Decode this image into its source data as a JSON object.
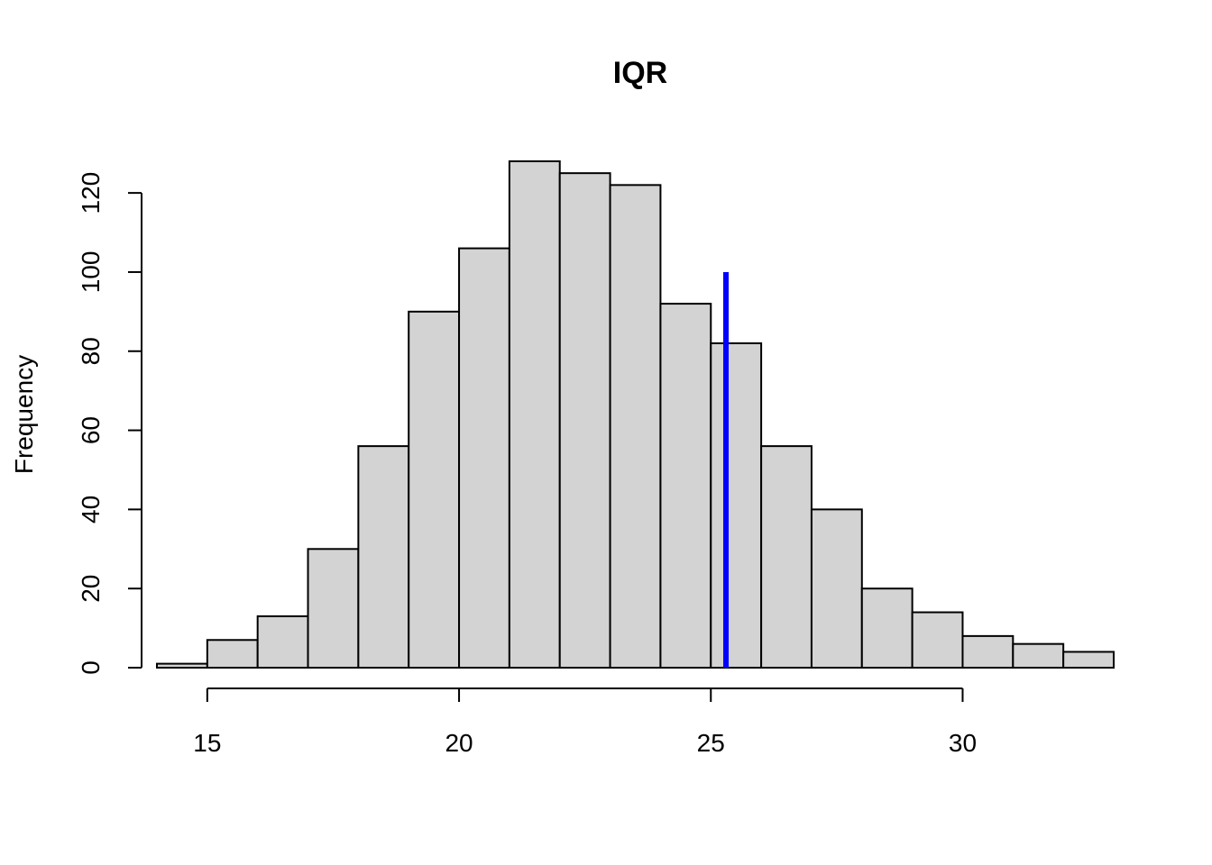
{
  "chart_data": {
    "type": "bar",
    "title": "IQR",
    "xlabel": "",
    "ylabel": "Frequency",
    "bin_edges": [
      14,
      15,
      16,
      17,
      18,
      19,
      20,
      21,
      22,
      23,
      24,
      25,
      26,
      27,
      28,
      29,
      30,
      31,
      32,
      33
    ],
    "values": [
      1,
      7,
      13,
      30,
      56,
      90,
      106,
      128,
      125,
      122,
      92,
      82,
      56,
      40,
      20,
      14,
      8,
      6,
      4
    ],
    "xlim": [
      14,
      33
    ],
    "ylim": [
      0,
      128
    ],
    "x_ticks": [
      15,
      20,
      25,
      30
    ],
    "y_ticks": [
      0,
      20,
      40,
      60,
      80,
      100,
      120
    ],
    "bar_fill": "#d3d3d3",
    "reference_line": {
      "x": 25.3,
      "y_from": 0,
      "y_to": 100,
      "color": "#0000ff"
    },
    "grid": false
  }
}
